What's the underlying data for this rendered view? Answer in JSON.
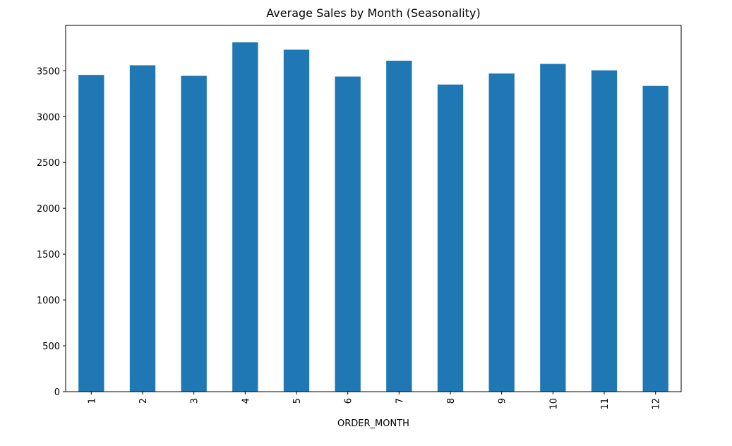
{
  "chart_data": {
    "type": "bar",
    "title": "Average Sales by Month (Seasonality)",
    "xlabel": "ORDER_MONTH",
    "ylabel": "",
    "categories": [
      "1",
      "2",
      "3",
      "4",
      "5",
      "6",
      "7",
      "8",
      "9",
      "10",
      "11",
      "12"
    ],
    "values": [
      3455,
      3560,
      3445,
      3810,
      3730,
      3437,
      3610,
      3350,
      3470,
      3575,
      3505,
      3335
    ],
    "ylim": [
      0,
      3995
    ],
    "yticks": [
      0,
      500,
      1000,
      1500,
      2000,
      2500,
      3000,
      3500
    ],
    "ytick_labels": [
      "0",
      "500",
      "1000",
      "1500",
      "2000",
      "2500",
      "3000",
      "3500"
    ],
    "grid": false,
    "legend": "none",
    "bar_color": "#1f77b4",
    "x_tick_rotation": "vertical"
  }
}
